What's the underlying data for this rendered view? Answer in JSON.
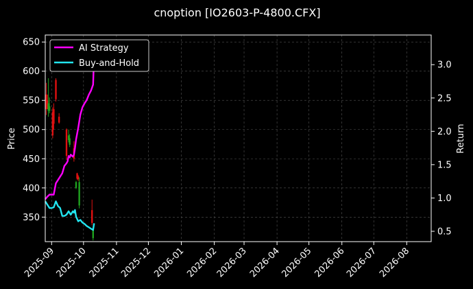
{
  "chart_data": {
    "type": "line",
    "title": "cnoption [IO2603-P-4800.CFX]",
    "ylabel": "Price",
    "y2label": "Return",
    "ylim": [
      308,
      662
    ],
    "y2lim": [
      0.345,
      3.445
    ],
    "xlim": [
      "2025-08-26",
      "2026-08-24"
    ],
    "grid": true,
    "legend_position": "top-left",
    "y_ticks": [
      350,
      400,
      450,
      500,
      550,
      600,
      650
    ],
    "y2_ticks": [
      "0.5",
      "1.0",
      "1.5",
      "2.0",
      "2.5",
      "3.0"
    ],
    "x_ticks": [
      "2025-09",
      "2025-10",
      "2025-11",
      "2025-12",
      "2026-01",
      "2026-02",
      "2026-03",
      "2026-04",
      "2026-05",
      "2026-06",
      "2026-07",
      "2026-08"
    ],
    "x_tick_dates": [
      "2025-09-01",
      "2025-10-01",
      "2025-11-01",
      "2025-12-01",
      "2026-01-01",
      "2026-02-01",
      "2026-03-01",
      "2026-04-01",
      "2026-05-01",
      "2026-06-01",
      "2026-07-01",
      "2026-08-01"
    ],
    "candles": [
      {
        "date": "2025-08-27",
        "open": 535,
        "high": 580,
        "low": 525,
        "close": 560,
        "color": "red"
      },
      {
        "date": "2025-08-28",
        "open": 550,
        "high": 560,
        "low": 535,
        "close": 540,
        "color": "red"
      },
      {
        "date": "2025-08-29",
        "open": 532,
        "high": 588,
        "low": 522,
        "close": 545,
        "color": "green"
      },
      {
        "date": "2025-08-30",
        "open": 540,
        "high": 555,
        "low": 528,
        "close": 532,
        "color": "green"
      },
      {
        "date": "2025-09-02",
        "open": 530,
        "high": 538,
        "low": 485,
        "close": 490,
        "color": "red"
      },
      {
        "date": "2025-09-03",
        "open": 535,
        "high": 545,
        "low": 500,
        "close": 510,
        "color": "red"
      },
      {
        "date": "2025-09-05",
        "open": 585,
        "high": 588,
        "low": 548,
        "close": 552,
        "color": "red"
      },
      {
        "date": "2025-09-08",
        "open": 522,
        "high": 528,
        "low": 510,
        "close": 512,
        "color": "red"
      },
      {
        "date": "2025-09-15",
        "open": 500,
        "high": 502,
        "low": 448,
        "close": 455,
        "color": "red"
      },
      {
        "date": "2025-09-17",
        "open": 490,
        "high": 500,
        "low": 478,
        "close": 482,
        "color": "green"
      },
      {
        "date": "2025-09-18",
        "open": 485,
        "high": 492,
        "low": 470,
        "close": 474,
        "color": "green"
      },
      {
        "date": "2025-09-22",
        "open": 468,
        "high": 480,
        "low": 445,
        "close": 450,
        "color": "red"
      },
      {
        "date": "2025-09-24",
        "open": 410,
        "high": 412,
        "low": 398,
        "close": 400,
        "color": "green"
      },
      {
        "date": "2025-09-25",
        "open": 425,
        "high": 426,
        "low": 414,
        "close": 416,
        "color": "red"
      },
      {
        "date": "2025-09-26",
        "open": 420,
        "high": 422,
        "low": 412,
        "close": 415,
        "color": "red"
      },
      {
        "date": "2025-09-27",
        "open": 410,
        "high": 418,
        "low": 365,
        "close": 370,
        "color": "green"
      },
      {
        "date": "2025-10-09",
        "open": 362,
        "high": 380,
        "low": 336,
        "close": 340,
        "color": "red"
      },
      {
        "date": "2025-10-10",
        "open": 330,
        "high": 334,
        "low": 310,
        "close": 314,
        "color": "green"
      }
    ],
    "series": [
      {
        "name": "AI Strategy",
        "color": "#ff00ff",
        "x": [
          "2025-08-26",
          "2025-08-28",
          "2025-08-30",
          "2025-09-01",
          "2025-09-03",
          "2025-09-05",
          "2025-09-07",
          "2025-09-09",
          "2025-09-11",
          "2025-09-13",
          "2025-09-15",
          "2025-09-16",
          "2025-09-17",
          "2025-09-18",
          "2025-09-19",
          "2025-09-21",
          "2025-09-22",
          "2025-09-23",
          "2025-09-24",
          "2025-09-26",
          "2025-09-28",
          "2025-09-30",
          "2025-10-02",
          "2025-10-04",
          "2025-10-06",
          "2025-10-08",
          "2025-10-10",
          "2025-10-11"
        ],
        "y": [
          0.98,
          1.02,
          1.05,
          1.05,
          1.05,
          1.22,
          1.27,
          1.32,
          1.37,
          1.48,
          1.52,
          1.55,
          1.63,
          1.61,
          1.65,
          1.62,
          1.65,
          1.75,
          1.88,
          2.05,
          2.25,
          2.36,
          2.42,
          2.47,
          2.55,
          2.61,
          2.7,
          3.15
        ]
      },
      {
        "name": "Buy-and-Hold",
        "color": "#22e5f0",
        "x": [
          "2025-08-26",
          "2025-08-28",
          "2025-08-30",
          "2025-09-01",
          "2025-09-03",
          "2025-09-05",
          "2025-09-07",
          "2025-09-09",
          "2025-09-11",
          "2025-09-13",
          "2025-09-15",
          "2025-09-17",
          "2025-09-19",
          "2025-09-21",
          "2025-09-22",
          "2025-09-23",
          "2025-09-24",
          "2025-09-26",
          "2025-09-28",
          "2025-09-30",
          "2025-10-02",
          "2025-10-04",
          "2025-10-06",
          "2025-10-08",
          "2025-10-10",
          "2025-10-11"
        ],
        "y": [
          0.95,
          0.9,
          0.85,
          0.85,
          0.86,
          0.95,
          0.88,
          0.85,
          0.73,
          0.73,
          0.75,
          0.8,
          0.75,
          0.8,
          0.78,
          0.82,
          0.72,
          0.65,
          0.67,
          0.63,
          0.61,
          0.58,
          0.56,
          0.54,
          0.52,
          0.62
        ]
      }
    ],
    "colors": {
      "background": "#000000",
      "grid": "#555555",
      "candle_up": "#1fa31f",
      "candle_down": "#e01010",
      "axis": "#ffffff"
    }
  }
}
